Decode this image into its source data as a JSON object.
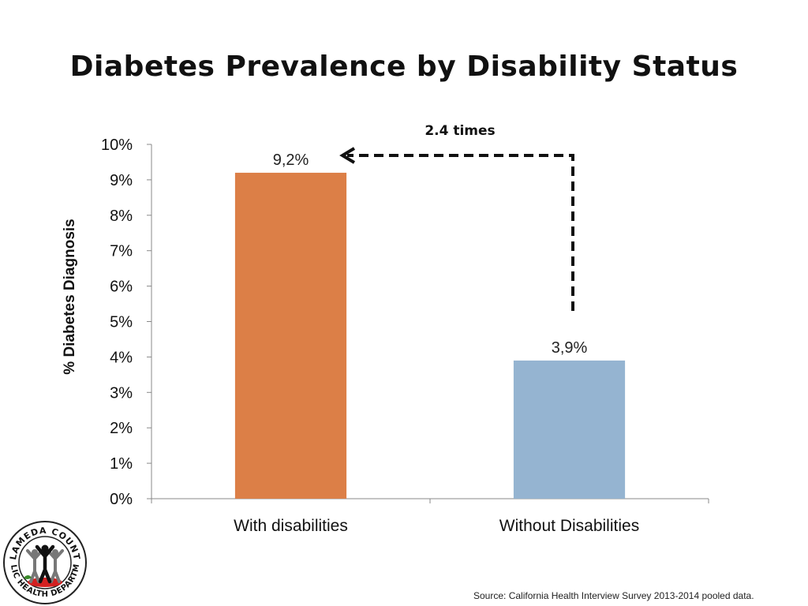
{
  "slide": {
    "title": "Diabetes Prevalence by Disability Status",
    "source": "Source: California Health Interview Survey 2013-2014 pooled data."
  },
  "logo": {
    "ring_text_top": "ALAMEDA COUNTY",
    "ring_text_bottom": "PUBLIC HEALTH DEPARTMENT"
  },
  "chart_data": {
    "type": "bar",
    "categories": [
      "With disabilities",
      "Without Disabilities"
    ],
    "values": [
      9.2,
      3.9
    ],
    "data_labels": [
      "9,2%",
      "3,9%"
    ],
    "bar_colors": [
      "#dc7f47",
      "#95b4d1"
    ],
    "ylabel": "% Diabetes Diagnosis",
    "ylim": [
      0,
      10
    ],
    "yticks": [
      0,
      1,
      2,
      3,
      4,
      5,
      6,
      7,
      8,
      9,
      10
    ],
    "ytick_labels": [
      "0%",
      "1%",
      "2%",
      "3%",
      "4%",
      "5%",
      "6%",
      "7%",
      "8%",
      "9%",
      "10%"
    ],
    "grid": false,
    "annotation": {
      "text": "2.4 times",
      "style": "dashed arrow from second bar to first bar"
    }
  }
}
